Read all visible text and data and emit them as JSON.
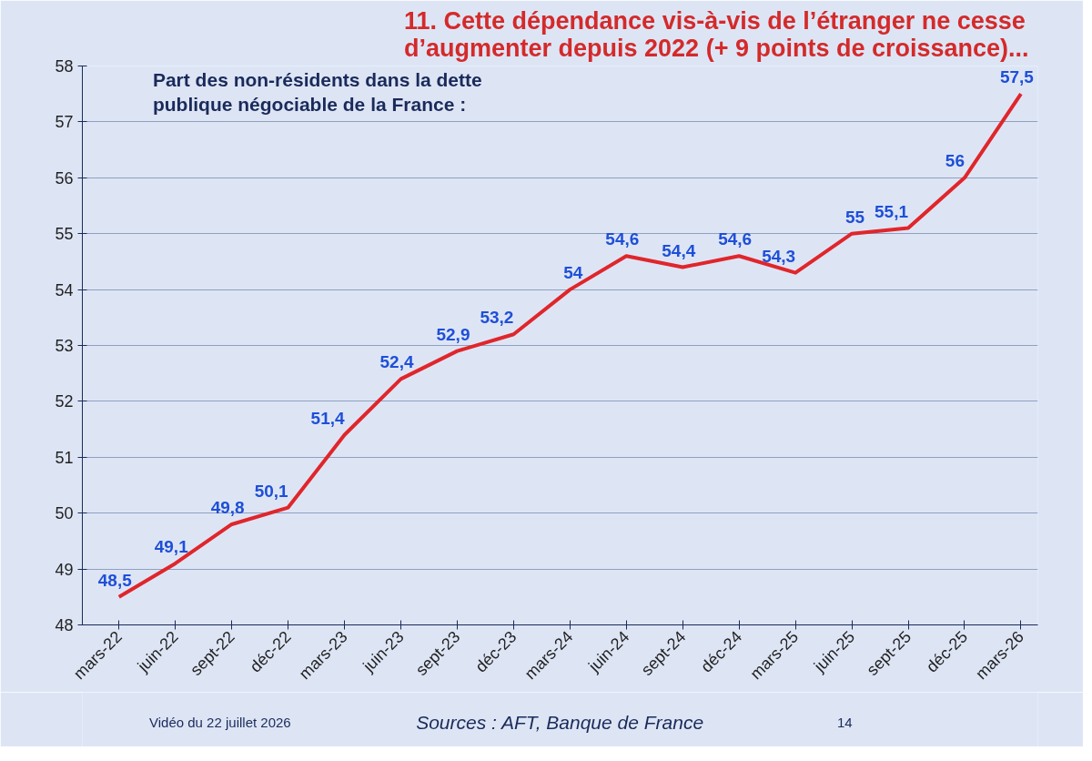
{
  "chart_data": {
    "type": "line",
    "title": "11. Cette dépendance vis-à-vis de l’étranger ne cesse\nd’augmenter depuis 2022 (+ 9 points de croissance)...",
    "subtitle": "Part des non-résidents dans la dette\npublique négociable de la France :",
    "categories": [
      "mars-22",
      "juin-22",
      "sept-22",
      "déc-22",
      "mars-23",
      "juin-23",
      "sept-23",
      "déc-23",
      "mars-24",
      "juin-24",
      "sept-24",
      "déc-24",
      "mars-25",
      "juin-25",
      "sept-25",
      "déc-25",
      "mars-26"
    ],
    "values": [
      48.5,
      49.1,
      49.8,
      50.1,
      51.4,
      52.4,
      52.9,
      53.2,
      54,
      54.6,
      54.4,
      54.6,
      54.3,
      55,
      55.1,
      56,
      57.5
    ],
    "value_labels": [
      "48,5",
      "49,1",
      "49,8",
      "50,1",
      "51,4",
      "52,4",
      "52,9",
      "53,2",
      "54",
      "54,6",
      "54,4",
      "54,6",
      "54,3",
      "55",
      "55,1",
      "56",
      "57,5"
    ],
    "color": "#e0262b",
    "ylim": [
      48,
      58
    ],
    "yticks": [
      48,
      49,
      50,
      51,
      52,
      53,
      54,
      55,
      56,
      57,
      58
    ],
    "grid": "y",
    "annotations": [
      "Vidéo du 22 juillet 2026",
      "Sources : AFT, Banque de France",
      "14"
    ]
  }
}
